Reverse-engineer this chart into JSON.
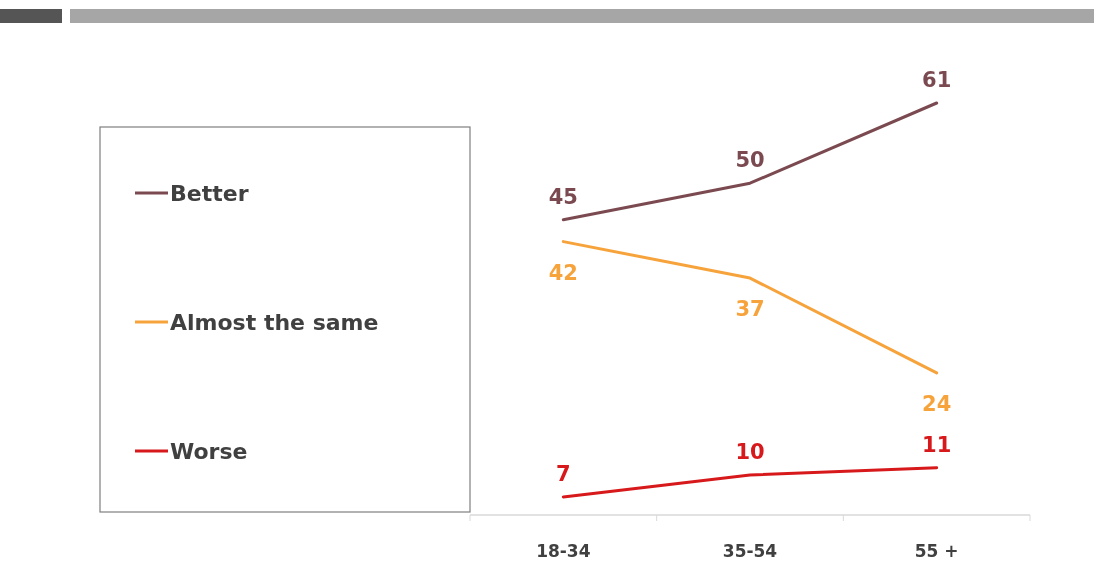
{
  "chart_data": {
    "type": "line",
    "categories": [
      "18-34",
      "35-54",
      "55 +"
    ],
    "series": [
      {
        "name": "Better",
        "color": "#7b4a50",
        "values": [
          45,
          50,
          61
        ]
      },
      {
        "name": "Almost the same",
        "color": "#f7a33c",
        "values": [
          42,
          37,
          24
        ]
      },
      {
        "name": "Worse",
        "color": "#d7191c",
        "values": [
          7,
          10,
          11
        ]
      }
    ],
    "data_labels": true,
    "legend": "left",
    "marker": "none",
    "line_style": "solid"
  }
}
